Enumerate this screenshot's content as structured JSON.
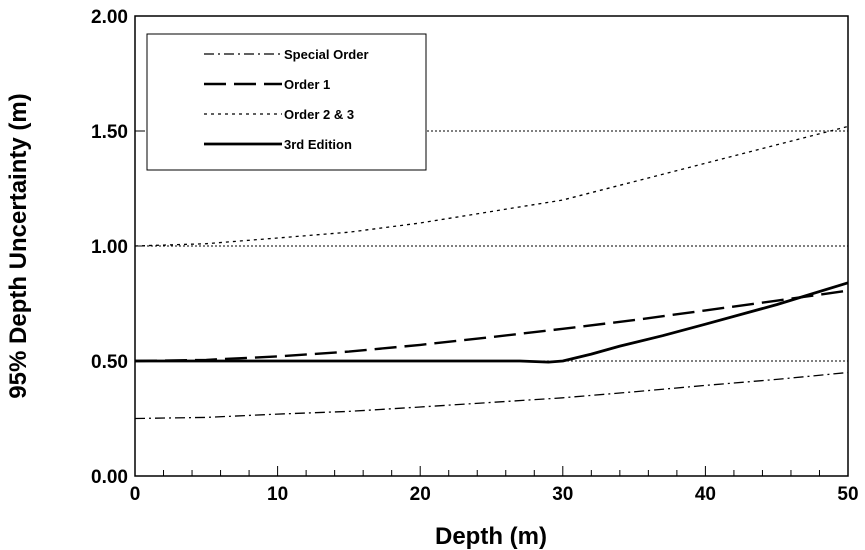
{
  "chart_data": {
    "type": "line",
    "title": "",
    "xlabel": "Depth (m)",
    "ylabel": "95% Depth Uncertainty (m)",
    "xlim": [
      0,
      50
    ],
    "ylim": [
      0,
      2
    ],
    "xticks": [
      0,
      10,
      20,
      30,
      40,
      50
    ],
    "xtick_labels": [
      "0",
      "10",
      "20",
      "30",
      "40",
      "50"
    ],
    "yticks": [
      0,
      0.5,
      1,
      1.5,
      2
    ],
    "ytick_labels": [
      "0.00",
      "0.50",
      "1.00",
      "1.50",
      "2.00"
    ],
    "gridlines_y": [
      0.5,
      1,
      1.5,
      2
    ],
    "legend_position": "top-left",
    "series": [
      {
        "name": "Special Order",
        "dash": "dash-dot",
        "points": [
          [
            0,
            0.25
          ],
          [
            5,
            0.255
          ],
          [
            10,
            0.269
          ],
          [
            15,
            0.281
          ],
          [
            20,
            0.3
          ],
          [
            25,
            0.32
          ],
          [
            30,
            0.34
          ],
          [
            35,
            0.366
          ],
          [
            40,
            0.394
          ],
          [
            45,
            0.42
          ],
          [
            50,
            0.45
          ]
        ]
      },
      {
        "name": "Order 1",
        "dash": "long-dash",
        "points": [
          [
            0,
            0.5
          ],
          [
            5,
            0.505
          ],
          [
            10,
            0.52
          ],
          [
            15,
            0.541
          ],
          [
            20,
            0.57
          ],
          [
            25,
            0.604
          ],
          [
            30,
            0.64
          ],
          [
            35,
            0.678
          ],
          [
            40,
            0.72
          ],
          [
            45,
            0.762
          ],
          [
            50,
            0.806
          ]
        ]
      },
      {
        "name": "Order 2 & 3",
        "dash": "dotted",
        "points": [
          [
            0,
            1.0
          ],
          [
            5,
            1.01
          ],
          [
            10,
            1.035
          ],
          [
            15,
            1.06
          ],
          [
            20,
            1.1
          ],
          [
            25,
            1.15
          ],
          [
            30,
            1.2
          ],
          [
            35,
            1.28
          ],
          [
            40,
            1.36
          ],
          [
            45,
            1.44
          ],
          [
            50,
            1.52
          ]
        ]
      },
      {
        "name": "3rd Edition",
        "dash": "solid",
        "points": [
          [
            0,
            0.5
          ],
          [
            10,
            0.5
          ],
          [
            20,
            0.5
          ],
          [
            27,
            0.5
          ],
          [
            29,
            0.495
          ],
          [
            30,
            0.5
          ],
          [
            32,
            0.53
          ],
          [
            34,
            0.565
          ],
          [
            37,
            0.61
          ],
          [
            40,
            0.66
          ],
          [
            45,
            0.745
          ],
          [
            50,
            0.84
          ]
        ]
      }
    ]
  }
}
